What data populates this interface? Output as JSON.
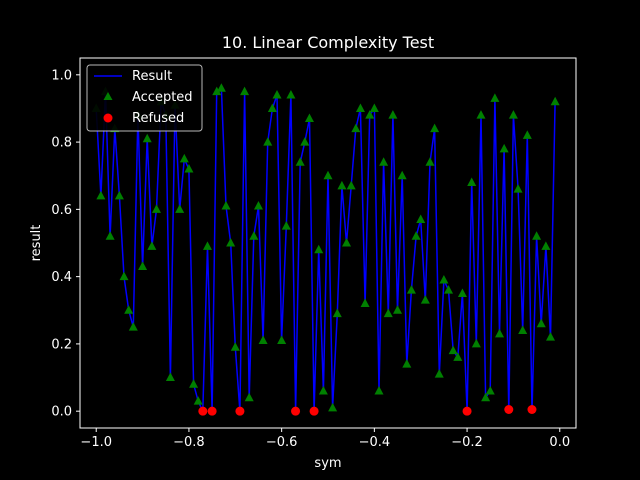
{
  "chart_data": {
    "type": "scatter",
    "title": "10. Linear Complexity Test",
    "xlabel": "sym",
    "ylabel": "result",
    "xlim": [
      -1.035,
      0.035
    ],
    "ylim": [
      -0.05,
      1.05
    ],
    "xticks": [
      -1.0,
      -0.8,
      -0.6,
      -0.4,
      -0.2,
      0.0
    ],
    "xtick_labels": [
      "−1.0",
      "−0.8",
      "−0.6",
      "−0.4",
      "−0.2",
      "0.0"
    ],
    "yticks": [
      0.0,
      0.2,
      0.4,
      0.6,
      0.8,
      1.0
    ],
    "ytick_labels": [
      "0.0",
      "0.2",
      "0.4",
      "0.6",
      "0.8",
      "1.0"
    ],
    "grid": false,
    "legend_position": "upper-left",
    "colors": {
      "background": "#000000",
      "line": "#0000ff",
      "accepted": "#008000",
      "refused": "#ff0000",
      "text": "#ffffff"
    },
    "series": [
      {
        "name": "Result",
        "type": "line",
        "x": [
          -1.0,
          -0.99,
          -0.98,
          -0.97,
          -0.96,
          -0.95,
          -0.94,
          -0.93,
          -0.92,
          -0.91,
          -0.9,
          -0.89,
          -0.88,
          -0.87,
          -0.86,
          -0.85,
          -0.84,
          -0.83,
          -0.82,
          -0.81,
          -0.8,
          -0.79,
          -0.78,
          -0.77,
          -0.76,
          -0.75,
          -0.74,
          -0.73,
          -0.72,
          -0.71,
          -0.7,
          -0.69,
          -0.68,
          -0.67,
          -0.66,
          -0.65,
          -0.64,
          -0.63,
          -0.62,
          -0.61,
          -0.6,
          -0.59,
          -0.58,
          -0.57,
          -0.56,
          -0.55,
          -0.54,
          -0.53,
          -0.52,
          -0.51,
          -0.5,
          -0.49,
          -0.48,
          -0.47,
          -0.46,
          -0.45,
          -0.44,
          -0.43,
          -0.42,
          -0.41,
          -0.4,
          -0.39,
          -0.38,
          -0.37,
          -0.36,
          -0.35,
          -0.34,
          -0.33,
          -0.32,
          -0.31,
          -0.3,
          -0.29,
          -0.28,
          -0.27,
          -0.26,
          -0.25,
          -0.24,
          -0.23,
          -0.22,
          -0.21,
          -0.2,
          -0.19,
          -0.18,
          -0.17,
          -0.16,
          -0.15,
          -0.14,
          -0.13,
          -0.12,
          -0.11,
          -0.1,
          -0.09,
          -0.08,
          -0.07,
          -0.06,
          -0.05,
          -0.04,
          -0.03,
          -0.02,
          -0.01
        ],
        "y": [
          0.9,
          0.64,
          0.95,
          0.52,
          0.84,
          0.64,
          0.4,
          0.3,
          0.25,
          0.88,
          0.43,
          0.81,
          0.49,
          0.6,
          0.92,
          0.88,
          0.1,
          0.91,
          0.6,
          0.75,
          0.72,
          0.08,
          0.03,
          0.0,
          0.49,
          0.0,
          0.95,
          0.96,
          0.61,
          0.5,
          0.19,
          0.0,
          0.95,
          0.04,
          0.52,
          0.61,
          0.21,
          0.8,
          0.9,
          0.94,
          0.21,
          0.55,
          0.94,
          0.0,
          0.74,
          0.8,
          0.87,
          0.0,
          0.48,
          0.06,
          0.7,
          0.01,
          0.29,
          0.67,
          0.5,
          0.67,
          0.84,
          0.9,
          0.32,
          0.88,
          0.9,
          0.06,
          0.74,
          0.29,
          0.88,
          0.3,
          0.7,
          0.14,
          0.36,
          0.52,
          0.57,
          0.33,
          0.74,
          0.84,
          0.11,
          0.39,
          0.36,
          0.18,
          0.16,
          0.35,
          0.0,
          0.68,
          0.2,
          0.88,
          0.04,
          0.06,
          0.93,
          0.23,
          0.78,
          0.0,
          0.88,
          0.66,
          0.24,
          0.82,
          0.0,
          0.52,
          0.26,
          0.49,
          0.22,
          0.92
        ]
      },
      {
        "name": "Accepted",
        "type": "scatter",
        "marker": "triangle",
        "x": [
          -1.0,
          -0.99,
          -0.98,
          -0.97,
          -0.96,
          -0.95,
          -0.94,
          -0.93,
          -0.92,
          -0.91,
          -0.9,
          -0.89,
          -0.88,
          -0.87,
          -0.86,
          -0.85,
          -0.84,
          -0.83,
          -0.82,
          -0.81,
          -0.8,
          -0.79,
          -0.78,
          -0.76,
          -0.74,
          -0.73,
          -0.72,
          -0.71,
          -0.7,
          -0.68,
          -0.67,
          -0.66,
          -0.65,
          -0.64,
          -0.63,
          -0.62,
          -0.61,
          -0.6,
          -0.59,
          -0.58,
          -0.56,
          -0.55,
          -0.54,
          -0.52,
          -0.51,
          -0.5,
          -0.49,
          -0.48,
          -0.47,
          -0.46,
          -0.45,
          -0.44,
          -0.43,
          -0.42,
          -0.41,
          -0.4,
          -0.39,
          -0.38,
          -0.37,
          -0.36,
          -0.35,
          -0.34,
          -0.33,
          -0.32,
          -0.31,
          -0.3,
          -0.29,
          -0.28,
          -0.27,
          -0.26,
          -0.25,
          -0.24,
          -0.23,
          -0.22,
          -0.21,
          -0.19,
          -0.18,
          -0.17,
          -0.16,
          -0.15,
          -0.14,
          -0.13,
          -0.12,
          -0.1,
          -0.09,
          -0.08,
          -0.07,
          -0.05,
          -0.04,
          -0.03,
          -0.02,
          -0.01
        ],
        "y": [
          0.9,
          0.64,
          0.95,
          0.52,
          0.84,
          0.64,
          0.4,
          0.3,
          0.25,
          0.88,
          0.43,
          0.81,
          0.49,
          0.6,
          0.92,
          0.88,
          0.1,
          0.91,
          0.6,
          0.75,
          0.72,
          0.08,
          0.03,
          0.49,
          0.95,
          0.96,
          0.61,
          0.5,
          0.19,
          0.95,
          0.04,
          0.52,
          0.61,
          0.21,
          0.8,
          0.9,
          0.94,
          0.21,
          0.55,
          0.94,
          0.74,
          0.8,
          0.87,
          0.48,
          0.06,
          0.7,
          0.01,
          0.29,
          0.67,
          0.5,
          0.67,
          0.84,
          0.9,
          0.32,
          0.88,
          0.9,
          0.06,
          0.74,
          0.29,
          0.88,
          0.3,
          0.7,
          0.14,
          0.36,
          0.52,
          0.57,
          0.33,
          0.74,
          0.84,
          0.11,
          0.39,
          0.36,
          0.18,
          0.16,
          0.35,
          0.68,
          0.2,
          0.88,
          0.04,
          0.06,
          0.93,
          0.23,
          0.78,
          0.88,
          0.66,
          0.24,
          0.82,
          0.52,
          0.26,
          0.49,
          0.22,
          0.92
        ]
      },
      {
        "name": "Refused",
        "type": "scatter",
        "marker": "circle",
        "x": [
          -0.77,
          -0.75,
          -0.69,
          -0.57,
          -0.53,
          -0.2,
          -0.11,
          -0.06
        ],
        "y": [
          0.0,
          0.0,
          0.0,
          0.0,
          0.0,
          0.0,
          0.005,
          0.005
        ]
      }
    ]
  }
}
